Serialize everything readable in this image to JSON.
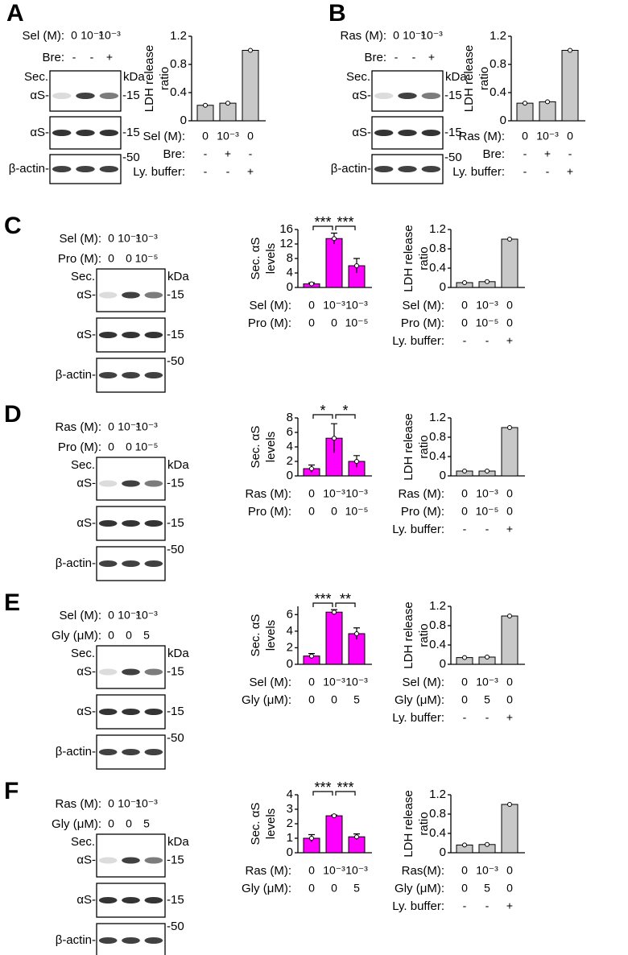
{
  "blots": [
    {
      "letter": "A",
      "header": [
        {
          "label": "Sel (M):",
          "values": [
            "0",
            "10⁻³",
            "10⁻³"
          ]
        },
        {
          "label": "Bre:",
          "values": [
            "-",
            "-",
            "+"
          ]
        }
      ],
      "sec": "Sec.",
      "kda": "kDa",
      "rows": [
        {
          "name": "αS-",
          "marker": "-15"
        },
        {
          "name": "αS-",
          "marker": "-15"
        },
        {
          "name": "β-actin-",
          "marker": "-50"
        }
      ]
    },
    {
      "letter": "B",
      "header": [
        {
          "label": "Ras (M):",
          "values": [
            "0",
            "10⁻³",
            "10⁻³"
          ]
        },
        {
          "label": "Bre:",
          "values": [
            "-",
            "-",
            "+"
          ]
        }
      ],
      "sec": "Sec.",
      "kda": "kDa",
      "rows": [
        {
          "name": "αS-",
          "marker": "-15"
        },
        {
          "name": "αS-",
          "marker": "-15"
        },
        {
          "name": "β-actin-",
          "marker": "-50"
        }
      ]
    },
    {
      "letter": "C",
      "header": [
        {
          "label": "Sel (M):",
          "values": [
            "0",
            "10⁻³",
            "10⁻³"
          ]
        },
        {
          "label": "Pro (M):",
          "values": [
            "0",
            "0",
            "10⁻⁵"
          ]
        }
      ],
      "sec": "Sec.",
      "kda": "kDa",
      "rows": [
        {
          "name": "αS-",
          "marker": "-15"
        },
        {
          "name": "αS-",
          "marker": "-15"
        },
        {
          "name": "β-actin-",
          "marker": "-50"
        }
      ]
    },
    {
      "letter": "D",
      "header": [
        {
          "label": "Ras (M):",
          "values": [
            "0",
            "10⁻³",
            "10⁻³"
          ]
        },
        {
          "label": "Pro (M):",
          "values": [
            "0",
            "0",
            "10⁻⁵"
          ]
        }
      ],
      "sec": "Sec.",
      "kda": "kDa",
      "rows": [
        {
          "name": "αS-",
          "marker": "-15"
        },
        {
          "name": "αS-",
          "marker": "-15"
        },
        {
          "name": "β-actin-",
          "marker": "-50"
        }
      ]
    },
    {
      "letter": "E",
      "header": [
        {
          "label": "Sel (M):",
          "values": [
            "0",
            "10⁻³",
            "10⁻³"
          ]
        },
        {
          "label": "Gly (μM):",
          "values": [
            "0",
            "0",
            "5"
          ]
        }
      ],
      "sec": "Sec.",
      "kda": "kDa",
      "rows": [
        {
          "name": "αS-",
          "marker": "-15"
        },
        {
          "name": "αS-",
          "marker": "-15"
        },
        {
          "name": "β-actin-",
          "marker": "-50"
        }
      ]
    },
    {
      "letter": "F",
      "header": [
        {
          "label": "Ras (M):",
          "values": [
            "0",
            "10⁻³",
            "10⁻³"
          ]
        },
        {
          "label": "Gly (μM):",
          "values": [
            "0",
            "0",
            "5"
          ]
        }
      ],
      "sec": "Sec.",
      "kda": "kDa",
      "rows": [
        {
          "name": "αS-",
          "marker": "-15"
        },
        {
          "name": "αS-",
          "marker": "-15"
        },
        {
          "name": "β-actin-",
          "marker": "-50"
        }
      ]
    }
  ],
  "chart_data": [
    {
      "type": "bar",
      "y_label": [
        "LDH release",
        "ratio"
      ],
      "values": [
        0.22,
        0.25,
        1.0
      ],
      "color": "#c8c8c8",
      "ylim": [
        0,
        1.2
      ],
      "yticks": [
        0,
        0.4,
        0.8,
        1.2
      ],
      "conditions": [
        {
          "label": "Sel (M):",
          "values": [
            "0",
            "10⁻³",
            "0"
          ]
        },
        {
          "label": "Bre:",
          "values": [
            "-",
            "+",
            "-"
          ]
        },
        {
          "label": "Ly. buffer:",
          "values": [
            "-",
            "-",
            "+"
          ]
        }
      ]
    },
    {
      "type": "bar",
      "y_label": [
        "LDH release",
        "ratio"
      ],
      "values": [
        0.25,
        0.27,
        1.0
      ],
      "color": "#c8c8c8",
      "ylim": [
        0,
        1.2
      ],
      "yticks": [
        0,
        0.4,
        0.8,
        1.2
      ],
      "conditions": [
        {
          "label": "Ras (M):",
          "values": [
            "0",
            "10⁻³",
            "0"
          ]
        },
        {
          "label": "Bre:",
          "values": [
            "-",
            "+",
            "-"
          ]
        },
        {
          "label": "Ly. buffer:",
          "values": [
            "-",
            "-",
            "+"
          ]
        }
      ]
    },
    {
      "type": "bar",
      "y_label": [
        "Sec. αS",
        "levels"
      ],
      "values": [
        1.0,
        13.5,
        6.0
      ],
      "errors": [
        0.3,
        1.5,
        2.0
      ],
      "color": "#ff00ff",
      "ylim": [
        0,
        16
      ],
      "yticks": [
        0,
        4,
        8,
        12,
        16
      ],
      "annotations": [
        "***",
        "***"
      ],
      "conditions": [
        {
          "label": "Sel (M):",
          "values": [
            "0",
            "10⁻³",
            "10⁻³"
          ]
        },
        {
          "label": "Pro (M):",
          "values": [
            "0",
            "0",
            "10⁻⁵"
          ]
        }
      ]
    },
    {
      "type": "bar",
      "y_label": [
        "LDH release",
        "ratio"
      ],
      "values": [
        0.1,
        0.12,
        1.0
      ],
      "color": "#c8c8c8",
      "ylim": [
        0,
        1.2
      ],
      "yticks": [
        0,
        0.4,
        0.8,
        1.2
      ],
      "conditions": [
        {
          "label": "Sel (M):",
          "values": [
            "0",
            "10⁻³",
            "0"
          ]
        },
        {
          "label": "Pro (M):",
          "values": [
            "0",
            "10⁻⁵",
            "0"
          ]
        },
        {
          "label": "Ly. buffer:",
          "values": [
            "-",
            "-",
            "+"
          ]
        }
      ]
    },
    {
      "type": "bar",
      "y_label": [
        "Sec. αS",
        "levels"
      ],
      "values": [
        1.0,
        5.2,
        2.0
      ],
      "errors": [
        0.5,
        2.0,
        0.8
      ],
      "color": "#ff00ff",
      "ylim": [
        0,
        8
      ],
      "yticks": [
        0,
        2,
        4,
        6,
        8
      ],
      "annotations": [
        "*",
        "*"
      ],
      "conditions": [
        {
          "label": "Ras (M):",
          "values": [
            "0",
            "10⁻³",
            "10⁻³"
          ]
        },
        {
          "label": "Pro (M):",
          "values": [
            "0",
            "0",
            "10⁻⁵"
          ]
        }
      ]
    },
    {
      "type": "bar",
      "y_label": [
        "LDH release",
        "ratio"
      ],
      "values": [
        0.1,
        0.1,
        1.0
      ],
      "color": "#c8c8c8",
      "ylim": [
        0,
        1.2
      ],
      "yticks": [
        0,
        0.4,
        0.8,
        1.2
      ],
      "conditions": [
        {
          "label": "Ras (M):",
          "values": [
            "0",
            "10⁻³",
            "0"
          ]
        },
        {
          "label": "Pro (M):",
          "values": [
            "0",
            "10⁻⁵",
            "0"
          ]
        },
        {
          "label": "Ly. buffer:",
          "values": [
            "-",
            "-",
            "+"
          ]
        }
      ]
    },
    {
      "type": "bar",
      "y_label": [
        "Sec. αS",
        "levels"
      ],
      "values": [
        1.0,
        6.3,
        3.7
      ],
      "errors": [
        0.3,
        0.3,
        0.7
      ],
      "color": "#ff00ff",
      "ylim": [
        0,
        7
      ],
      "yticks": [
        0,
        2,
        4,
        6
      ],
      "annotations": [
        "***",
        "**"
      ],
      "conditions": [
        {
          "label": "Sel (M):",
          "values": [
            "0",
            "10⁻³",
            "10⁻³"
          ]
        },
        {
          "label": "Gly (μM):",
          "values": [
            "0",
            "0",
            "5"
          ]
        }
      ]
    },
    {
      "type": "bar",
      "y_label": [
        "LDH release",
        "ratio"
      ],
      "values": [
        0.14,
        0.15,
        1.0
      ],
      "color": "#c8c8c8",
      "ylim": [
        0,
        1.2
      ],
      "yticks": [
        0,
        0.4,
        0.8,
        1.2
      ],
      "conditions": [
        {
          "label": "Sel (M):",
          "values": [
            "0",
            "10⁻³",
            "0"
          ]
        },
        {
          "label": "Gly (μM):",
          "values": [
            "0",
            "5",
            "0"
          ]
        },
        {
          "label": "Ly. buffer:",
          "values": [
            "-",
            "-",
            "+"
          ]
        }
      ]
    },
    {
      "type": "bar",
      "y_label": [
        "Sec. αS",
        "levels"
      ],
      "values": [
        1.0,
        2.55,
        1.1
      ],
      "errors": [
        0.25,
        0.05,
        0.2
      ],
      "color": "#ff00ff",
      "ylim": [
        0,
        4
      ],
      "yticks": [
        0,
        1,
        2,
        3,
        4
      ],
      "annotations": [
        "***",
        "***"
      ],
      "conditions": [
        {
          "label": "Ras (M):",
          "values": [
            "0",
            "10⁻³",
            "10⁻³"
          ]
        },
        {
          "label": "Gly (μM):",
          "values": [
            "0",
            "0",
            "5"
          ]
        }
      ]
    },
    {
      "type": "bar",
      "y_label": [
        "LDH release",
        "ratio"
      ],
      "values": [
        0.16,
        0.17,
        1.0
      ],
      "color": "#c8c8c8",
      "ylim": [
        0,
        1.2
      ],
      "yticks": [
        0,
        0.4,
        0.8,
        1.2
      ],
      "conditions": [
        {
          "label": "Ras(M):",
          "values": [
            "0",
            "10⁻³",
            "0"
          ]
        },
        {
          "label": "Gly (μM):",
          "values": [
            "0",
            "5",
            "0"
          ]
        },
        {
          "label": "Ly. buffer:",
          "values": [
            "-",
            "-",
            "+"
          ]
        }
      ]
    }
  ]
}
